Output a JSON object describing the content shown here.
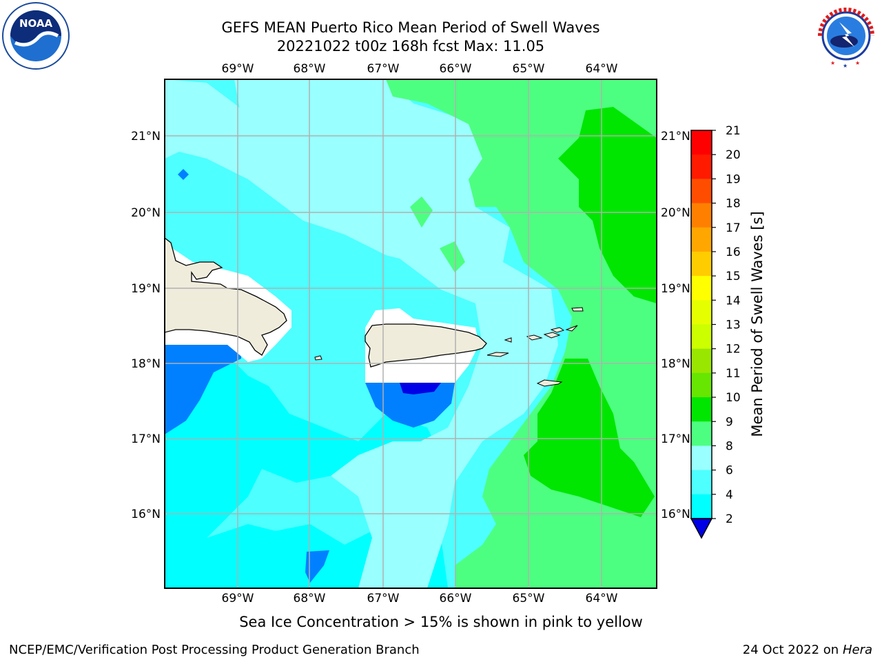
{
  "header": {
    "title_line1": "GEFS MEAN Puerto Rico Mean Period of Swell Waves",
    "title_line2": "20221022 t00z 168h fcst   Max: 11.05"
  },
  "logos": {
    "left": {
      "name": "noaa-logo",
      "text": "NOAA",
      "ring_text": "NATIONAL OCEANIC AND ATMOSPHERIC ADMINISTRATION · U.S. DEPARTMENT OF COMMERCE"
    },
    "right": {
      "name": "nws-logo",
      "ring_text": "NATIONAL WEATHER SERVICE"
    }
  },
  "map": {
    "lon_labels": [
      "69°W",
      "68°W",
      "67°W",
      "66°W",
      "65°W",
      "64°W"
    ],
    "lat_labels": [
      "21°N",
      "20°N",
      "19°N",
      "18°N",
      "17°N",
      "16°N"
    ],
    "land_color": "#efecdc",
    "grid_color": "#b0b0b0"
  },
  "colorbar": {
    "label": "Mean Period of Swell Waves [s]",
    "ticks": [
      "21",
      "20",
      "19",
      "18",
      "17",
      "16",
      "15",
      "14",
      "13",
      "12",
      "11",
      "10",
      "9",
      "8",
      "6",
      "4",
      "2"
    ],
    "colors": [
      "#0000e6",
      "#0080ff",
      "#00ffff",
      "#4dffff",
      "#99ffff",
      "#4dff80",
      "#00e600",
      "#66e600",
      "#99e600",
      "#ccff00",
      "#e6ff00",
      "#ffff00",
      "#ffcc00",
      "#ffa600",
      "#ff8000",
      "#ff4d00",
      "#ff1a00",
      "#ff0000"
    ]
  },
  "footer": {
    "note": "Sea Ice Concentration > 15% is shown in pink to yellow",
    "credit_left": "NCEP/EMC/Verification Post Processing Product Generation Branch",
    "credit_right_prefix": "24 Oct 2022 on ",
    "credit_right_host": "Hera"
  }
}
